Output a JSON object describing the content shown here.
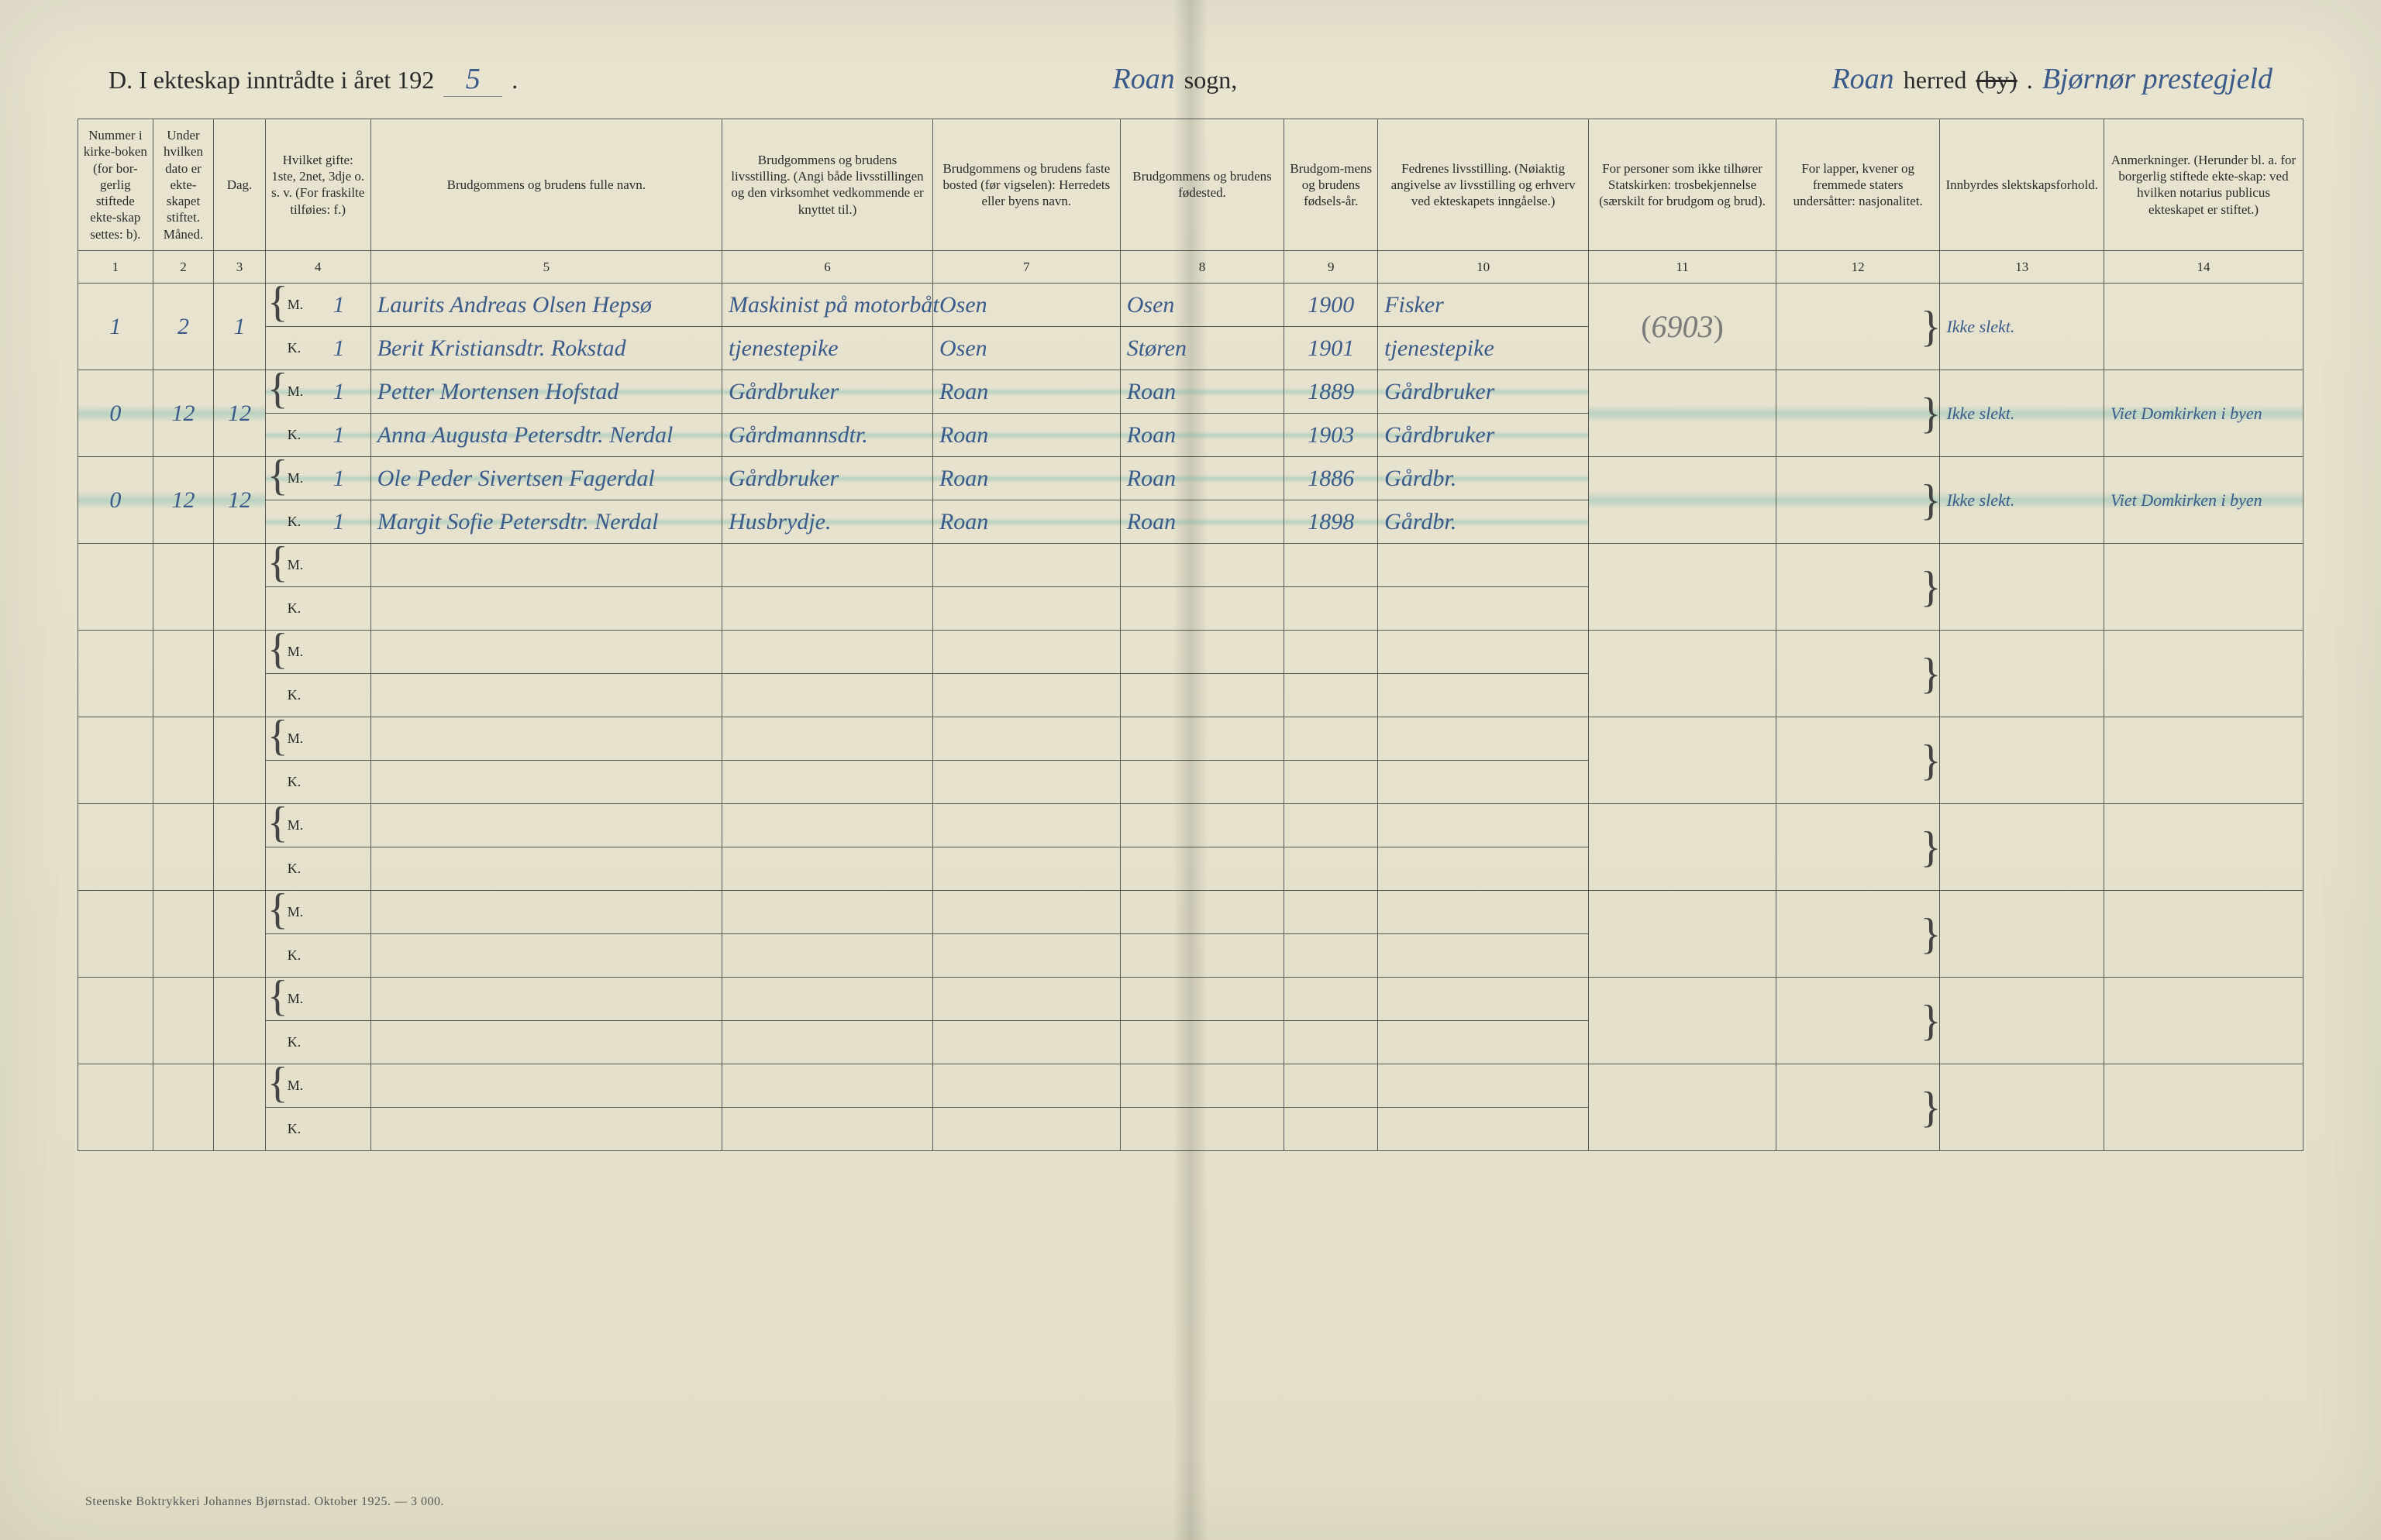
{
  "header": {
    "prefix": "D.  I ekteskap inntrådte i året 192",
    "year_last_digit": "5",
    "period": ".",
    "sogn_value": "Roan",
    "sogn_label": "sogn,",
    "herred_value": "Roan",
    "herred_label_pre": "herred ",
    "herred_label_strike": "(by)",
    "herred_label_post": ".",
    "prestegjeld_value": "Bjørnør prestegjeld"
  },
  "columns": [
    {
      "num": "1",
      "label": "Nummer i kirke-boken (for bor-gerlig stiftede ekte-skap settes: b).",
      "width": "3.2%"
    },
    {
      "num": "2",
      "label": "Under hvilken dato er ekte-skapet stiftet.\nMåned.",
      "width": "2.6%"
    },
    {
      "num": "3",
      "label": "Dag.",
      "width": "2.2%"
    },
    {
      "num": "4",
      "label": "Hvilket gifte: 1ste, 2net, 3dje o. s. v. (For fraskilte tilføies: f.)",
      "width": "4.5%"
    },
    {
      "num": "5",
      "label": "Brudgommens og brudens fulle navn.",
      "width": "15%"
    },
    {
      "num": "6",
      "label": "Brudgommens og brudens livsstilling. (Angi både livsstillingen og den virksomhet vedkommende er knyttet til.)",
      "width": "9%"
    },
    {
      "num": "7",
      "label": "Brudgommens og brudens faste bosted (før vigselen): Herredets eller byens navn.",
      "width": "8%"
    },
    {
      "num": "8",
      "label": "Brudgommens og brudens fødested.",
      "width": "7%"
    },
    {
      "num": "9",
      "label": "Brudgom-mens og brudens fødsels-år.",
      "width": "4%"
    },
    {
      "num": "10",
      "label": "Fedrenes livsstilling. (Nøiaktig angivelse av livsstilling og erhverv ved ekteskapets inngåelse.)",
      "width": "9%"
    },
    {
      "num": "11",
      "label": "For personer som ikke tilhører Statskirken: trosbekjennelse (særskilt for brudgom og brud).",
      "width": "8%"
    },
    {
      "num": "12",
      "label": "For lapper, kvener og fremmede staters undersåtter: nasjonalitet.",
      "width": "7%"
    },
    {
      "num": "13",
      "label": "Innbyrdes slektskapsforhold.",
      "width": "7%"
    },
    {
      "num": "14",
      "label": "Anmerkninger. (Herunder bl. a. for borgerlig stiftede ekte-skap: ved hvilken notarius publicus ekteskapet er stiftet.)",
      "width": "8.5%"
    }
  ],
  "date_subheads": {
    "maned": "Måned.",
    "dag": "Dag."
  },
  "mk_labels": {
    "m": "M.",
    "k": "K."
  },
  "entries": [
    {
      "num": "1",
      "maned": "2",
      "dag": "1",
      "m": {
        "gifte": "1",
        "navn": "Laurits Andreas Olsen Hepsø",
        "stilling": "Maskinist på motorbåt",
        "bosted": "Osen",
        "fodested": "Osen",
        "aar": "1900",
        "fedre": "Fisker"
      },
      "k": {
        "gifte": "1",
        "navn": "Berit Kristiansdtr. Rokstad",
        "stilling": "tjenestepike",
        "bosted": "Osen",
        "fodested": "Støren",
        "aar": "1901",
        "fedre": "tjenestepike"
      },
      "col11_note": "(6903)",
      "slekt": "Ikke slekt.",
      "anm": "",
      "highlight": false
    },
    {
      "num": "0",
      "maned": "12",
      "dag": "12",
      "m": {
        "gifte": "1",
        "navn": "Petter Mortensen Hofstad",
        "stilling": "Gårdbruker",
        "bosted": "Roan",
        "fodested": "Roan",
        "aar": "1889",
        "fedre": "Gårdbruker"
      },
      "k": {
        "gifte": "1",
        "navn": "Anna Augusta Petersdtr. Nerdal",
        "stilling": "Gårdmannsdtr.",
        "bosted": "Roan",
        "fodested": "Roan",
        "aar": "1903",
        "fedre": "Gårdbruker"
      },
      "col11_note": "",
      "slekt": "Ikke slekt.",
      "anm": "Viet Domkirken i byen",
      "highlight": true
    },
    {
      "num": "0",
      "maned": "12",
      "dag": "12",
      "m": {
        "gifte": "1",
        "navn": "Ole Peder Sivertsen Fagerdal",
        "stilling": "Gårdbruker",
        "bosted": "Roan",
        "fodested": "Roan",
        "aar": "1886",
        "fedre": "Gårdbr."
      },
      "k": {
        "gifte": "1",
        "navn": "Margit Sofie Petersdtr. Nerdal",
        "stilling": "Husbrydje.",
        "bosted": "Roan",
        "fodested": "Roan",
        "aar": "1898",
        "fedre": "Gårdbr."
      },
      "col11_note": "",
      "slekt": "Ikke slekt.",
      "anm": "Viet Domkirken i byen",
      "highlight": true
    }
  ],
  "empty_pairs": 7,
  "footer": "Steenske Boktrykkeri Johannes Bjørnstad.  Oktober 1925. — 3 000."
}
